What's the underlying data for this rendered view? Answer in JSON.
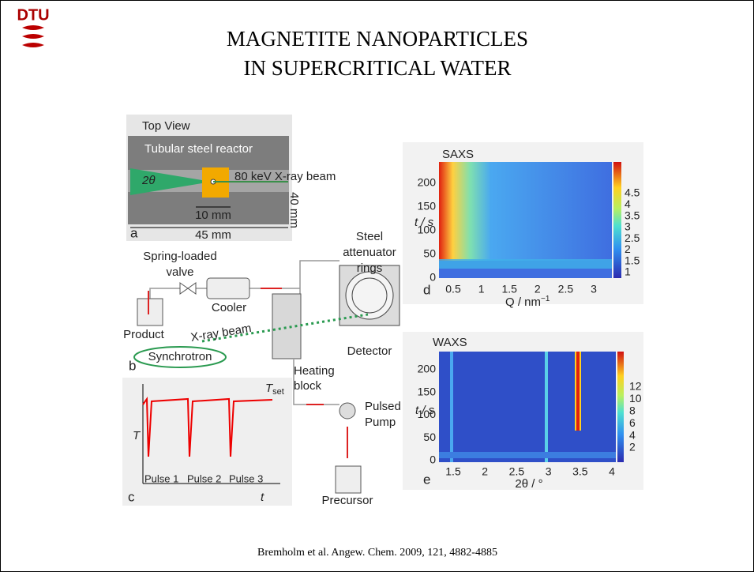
{
  "header": {
    "logo": "DTU",
    "title_lines": [
      "MAGNETITE NANOPARTICLES",
      "IN SUPERCRITICAL WATER"
    ]
  },
  "figure": {
    "panel_a": {
      "letter": "a",
      "view": "Top View",
      "reactor": "Tubular steel reactor",
      "angle": "2θ",
      "beam": "80 keV X-ray beam",
      "width_inner": "10 mm",
      "height": "40 mm",
      "width_outer": "45 mm"
    },
    "panel_b": {
      "letter": "b",
      "valve": [
        "Spring-loaded",
        "valve"
      ],
      "cooler": "Cooler",
      "product": "Product",
      "beam": "X-ray beam",
      "source": "Synchrotron",
      "heating": [
        "Heating",
        "block"
      ],
      "attenuator": [
        "Steel",
        "attenuator",
        "rings"
      ],
      "detector": "Detector",
      "pump": [
        "Pulsed",
        "Pump"
      ],
      "precursor": "Precursor"
    },
    "panel_c": {
      "letter": "c",
      "y_label": "T",
      "set_label": "T",
      "set_subscript": "set",
      "pulses": [
        "Pulse 1",
        "Pulse 2",
        "Pulse 3"
      ],
      "x_label": "t"
    },
    "panel_d": {
      "letter": "d",
      "title": "SAXS",
      "y_label": "t / s",
      "y_ticks": [
        0,
        50,
        100,
        150,
        200
      ],
      "x_label": "Q / nm",
      "x_label_exponent": "−1",
      "x_ticks": [
        0.5,
        1,
        1.5,
        2,
        2.5,
        3
      ],
      "colorbar_ticks": [
        4.5,
        4,
        3.5,
        3,
        2.5,
        2,
        1.5,
        1
      ]
    },
    "panel_e": {
      "letter": "e",
      "title": "WAXS",
      "y_label": "t / s",
      "y_ticks": [
        0,
        50,
        100,
        150,
        200
      ],
      "x_label": "2θ / °",
      "x_ticks": [
        1.5,
        2,
        2.5,
        3,
        3.5,
        4
      ],
      "colorbar_ticks": [
        12,
        10,
        8,
        6,
        4,
        2
      ]
    }
  },
  "footer": {
    "citation": "Bremholm et al. Angew. Chem. 2009, 121, 4882-4885"
  }
}
